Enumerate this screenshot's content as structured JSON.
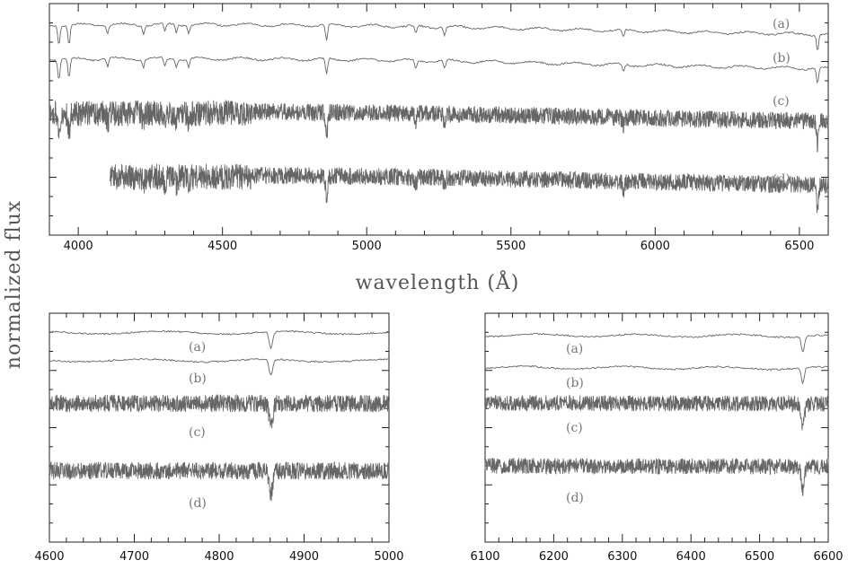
{
  "ylabel": "normalized flux",
  "xlabel": "wavelength (Å)",
  "colors": {
    "line": "#666666",
    "axis": "#222222",
    "series_label": "#777777"
  },
  "chart_data": [
    {
      "type": "line",
      "id": "main",
      "xlim": [
        3900,
        6600
      ],
      "x_ticks": [
        4000,
        4500,
        5000,
        5500,
        6000,
        6500
      ],
      "x_minor_step": 100,
      "grid": false,
      "series": [
        {
          "name": "(a)",
          "x_range": [
            3900,
            6600
          ],
          "noise": "smooth"
        },
        {
          "name": "(b)",
          "x_range": [
            3900,
            6600
          ],
          "noise": "smooth"
        },
        {
          "name": "(c)",
          "x_range": [
            3900,
            6600
          ],
          "noise": "dense"
        },
        {
          "name": "(d)",
          "x_range": [
            4110,
            6600
          ],
          "noise": "dense"
        }
      ],
      "absorption_features": [
        3933,
        3968,
        4102,
        4226,
        4300,
        4340,
        4383,
        4861,
        5170,
        5270,
        5890,
        6563
      ]
    },
    {
      "type": "line",
      "id": "zoom-blue",
      "xlim": [
        4600,
        5000
      ],
      "x_ticks": [
        4600,
        4700,
        4800,
        4900,
        5000
      ],
      "x_minor_step": 20,
      "grid": false,
      "series": [
        {
          "name": "(a)",
          "x_range": [
            4600,
            5000
          ],
          "noise": "smooth"
        },
        {
          "name": "(b)",
          "x_range": [
            4600,
            5000
          ],
          "noise": "smooth"
        },
        {
          "name": "(c)",
          "x_range": [
            4600,
            5000
          ],
          "noise": "dense"
        },
        {
          "name": "(d)",
          "x_range": [
            4600,
            5000
          ],
          "noise": "dense"
        }
      ],
      "absorption_features": [
        4861
      ]
    },
    {
      "type": "line",
      "id": "zoom-red",
      "xlim": [
        6100,
        6600
      ],
      "x_ticks": [
        6100,
        6200,
        6300,
        6400,
        6500,
        6600
      ],
      "x_minor_step": 20,
      "grid": false,
      "series": [
        {
          "name": "(a)",
          "x_range": [
            6100,
            6600
          ],
          "noise": "smooth"
        },
        {
          "name": "(b)",
          "x_range": [
            6100,
            6600
          ],
          "noise": "smooth"
        },
        {
          "name": "(c)",
          "x_range": [
            6100,
            6600
          ],
          "noise": "dense"
        },
        {
          "name": "(d)",
          "x_range": [
            6100,
            6600
          ],
          "noise": "dense"
        }
      ],
      "absorption_features": [
        6563
      ]
    }
  ]
}
